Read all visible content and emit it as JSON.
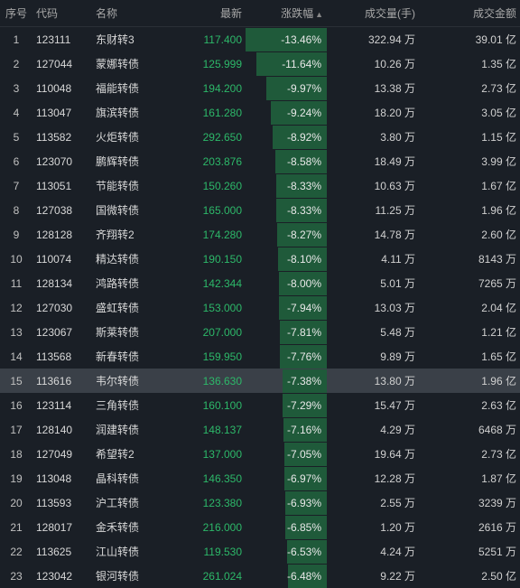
{
  "colors": {
    "background": "#1a1f26",
    "header_text": "#a8a8a8",
    "row_text": "#c8c8c8",
    "name_text": "#d8d8d8",
    "price_green": "#2db869",
    "change_bar": "#1f5a3a",
    "highlight_row": "#3a4048",
    "border": "#2a2f36"
  },
  "headers": {
    "idx": "序号",
    "code": "代码",
    "name": "名称",
    "price": "最新",
    "change": "涨跌幅",
    "vol": "成交量(手)",
    "amt": "成交金额"
  },
  "sort_indicator": "▲",
  "change_bar_max_abs": 13.46,
  "highlight_index": 15,
  "rows": [
    {
      "idx": 1,
      "code": "123111",
      "name": "东财转3",
      "price": "117.400",
      "change": -13.46,
      "vol": "322.94 万",
      "amt": "39.01 亿"
    },
    {
      "idx": 2,
      "code": "127044",
      "name": "蒙娜转债",
      "price": "125.999",
      "change": -11.64,
      "vol": "10.26 万",
      "amt": "1.35 亿"
    },
    {
      "idx": 3,
      "code": "110048",
      "name": "福能转债",
      "price": "194.200",
      "change": -9.97,
      "vol": "13.38 万",
      "amt": "2.73 亿"
    },
    {
      "idx": 4,
      "code": "113047",
      "name": "旗滨转债",
      "price": "161.280",
      "change": -9.24,
      "vol": "18.20 万",
      "amt": "3.05 亿"
    },
    {
      "idx": 5,
      "code": "113582",
      "name": "火炬转债",
      "price": "292.650",
      "change": -8.92,
      "vol": "3.80 万",
      "amt": "1.15 亿"
    },
    {
      "idx": 6,
      "code": "123070",
      "name": "鹏辉转债",
      "price": "203.876",
      "change": -8.58,
      "vol": "18.49 万",
      "amt": "3.99 亿"
    },
    {
      "idx": 7,
      "code": "113051",
      "name": "节能转债",
      "price": "150.260",
      "change": -8.33,
      "vol": "10.63 万",
      "amt": "1.67 亿"
    },
    {
      "idx": 8,
      "code": "127038",
      "name": "国微转债",
      "price": "165.000",
      "change": -8.33,
      "vol": "11.25 万",
      "amt": "1.96 亿"
    },
    {
      "idx": 9,
      "code": "128128",
      "name": "齐翔转2",
      "price": "174.280",
      "change": -8.27,
      "vol": "14.78 万",
      "amt": "2.60 亿"
    },
    {
      "idx": 10,
      "code": "110074",
      "name": "精达转债",
      "price": "190.150",
      "change": -8.1,
      "vol": "4.11 万",
      "amt": "8143 万"
    },
    {
      "idx": 11,
      "code": "128134",
      "name": "鸿路转债",
      "price": "142.344",
      "change": -8.0,
      "vol": "5.01 万",
      "amt": "7265 万"
    },
    {
      "idx": 12,
      "code": "127030",
      "name": "盛虹转债",
      "price": "153.000",
      "change": -7.94,
      "vol": "13.03 万",
      "amt": "2.04 亿"
    },
    {
      "idx": 13,
      "code": "123067",
      "name": "斯莱转债",
      "price": "207.000",
      "change": -7.81,
      "vol": "5.48 万",
      "amt": "1.21 亿"
    },
    {
      "idx": 14,
      "code": "113568",
      "name": "新春转债",
      "price": "159.950",
      "change": -7.76,
      "vol": "9.89 万",
      "amt": "1.65 亿"
    },
    {
      "idx": 15,
      "code": "113616",
      "name": "韦尔转债",
      "price": "136.630",
      "change": -7.38,
      "vol": "13.80 万",
      "amt": "1.96 亿"
    },
    {
      "idx": 16,
      "code": "123114",
      "name": "三角转债",
      "price": "160.100",
      "change": -7.29,
      "vol": "15.47 万",
      "amt": "2.63 亿"
    },
    {
      "idx": 17,
      "code": "128140",
      "name": "润建转债",
      "price": "148.137",
      "change": -7.16,
      "vol": "4.29 万",
      "amt": "6468 万"
    },
    {
      "idx": 18,
      "code": "127049",
      "name": "希望转2",
      "price": "137.000",
      "change": -7.05,
      "vol": "19.64 万",
      "amt": "2.73 亿"
    },
    {
      "idx": 19,
      "code": "113048",
      "name": "晶科转债",
      "price": "146.350",
      "change": -6.97,
      "vol": "12.28 万",
      "amt": "1.87 亿"
    },
    {
      "idx": 20,
      "code": "113593",
      "name": "沪工转债",
      "price": "123.380",
      "change": -6.93,
      "vol": "2.55 万",
      "amt": "3239 万"
    },
    {
      "idx": 21,
      "code": "128017",
      "name": "金禾转债",
      "price": "216.000",
      "change": -6.85,
      "vol": "1.20 万",
      "amt": "2616 万"
    },
    {
      "idx": 22,
      "code": "113625",
      "name": "江山转债",
      "price": "119.530",
      "change": -6.53,
      "vol": "4.24 万",
      "amt": "5251 万"
    },
    {
      "idx": 23,
      "code": "123042",
      "name": "银河转债",
      "price": "261.024",
      "change": -6.48,
      "vol": "9.22 万",
      "amt": "2.50 亿"
    }
  ]
}
